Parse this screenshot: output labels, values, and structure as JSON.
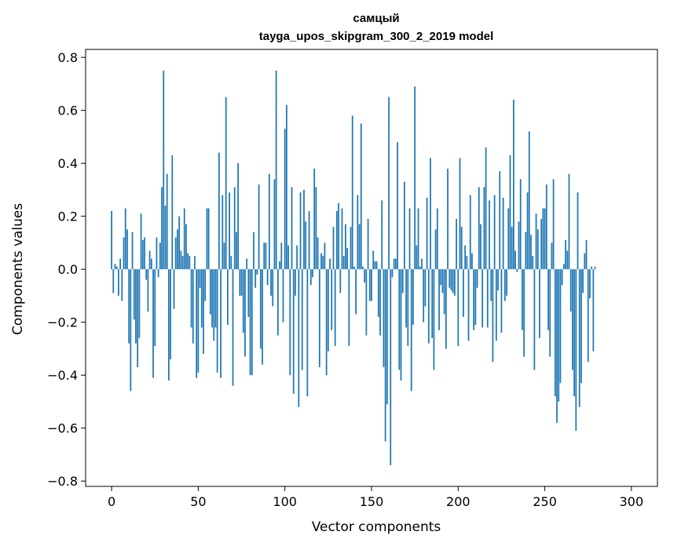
{
  "chart_data": {
    "type": "bar",
    "title": "самцый",
    "subtitle": "tayga_upos_skipgram_300_2_2019 model",
    "xlabel": "Vector components",
    "ylabel": "Components values",
    "xlim": [
      -15,
      315
    ],
    "ylim": [
      -0.82,
      0.83
    ],
    "xticks": [
      0,
      50,
      100,
      150,
      200,
      250,
      300
    ],
    "yticks": [
      -0.8,
      -0.6,
      -0.4,
      -0.2,
      0.0,
      0.2,
      0.4,
      0.6,
      0.8
    ],
    "xtick_labels": [
      "0",
      "50",
      "100",
      "150",
      "200",
      "250",
      "300"
    ],
    "ytick_labels": [
      "−0.8",
      "−0.6",
      "−0.4",
      "−0.2",
      "0.0",
      "0.2",
      "0.4",
      "0.6",
      "0.8"
    ],
    "bar_color": "#1f77b4",
    "grid": false,
    "values": [
      0.22,
      -0.09,
      0.02,
      0.01,
      -0.1,
      0.04,
      -0.12,
      0.12,
      0.23,
      0.15,
      -0.28,
      -0.46,
      0.14,
      -0.19,
      -0.28,
      -0.37,
      -0.26,
      0.21,
      0.11,
      0.12,
      -0.04,
      -0.16,
      0.07,
      0.04,
      -0.41,
      -0.29,
      0.12,
      -0.03,
      0.1,
      0.31,
      0.75,
      0.24,
      0.36,
      -0.42,
      -0.34,
      0.43,
      -0.15,
      0.12,
      0.15,
      0.2,
      0.07,
      0.05,
      0.23,
      0.17,
      0.06,
      0.05,
      -0.22,
      -0.28,
      0.05,
      -0.41,
      -0.39,
      -0.07,
      -0.22,
      -0.32,
      -0.12,
      0.23,
      0.23,
      -0.17,
      -0.22,
      -0.27,
      -0.22,
      -0.39,
      0.44,
      -0.41,
      0.28,
      0.1,
      0.65,
      -0.21,
      0.29,
      0.05,
      -0.44,
      0.31,
      0.14,
      0.4,
      -0.1,
      -0.1,
      -0.24,
      -0.33,
      0.04,
      -0.18,
      -0.4,
      -0.4,
      0.14,
      -0.07,
      -0.02,
      0.32,
      -0.3,
      -0.36,
      0.1,
      0.1,
      -0.06,
      0.36,
      -0.1,
      -0.14,
      0.34,
      0.75,
      -0.25,
      0.03,
      0.1,
      -0.2,
      0.53,
      0.62,
      0.09,
      -0.4,
      0.31,
      -0.47,
      -0.1,
      0.09,
      -0.52,
      0.29,
      -0.38,
      0.3,
      0.18,
      -0.48,
      0.22,
      -0.06,
      -0.03,
      0.38,
      0.31,
      0.12,
      -0.37,
      0.06,
      0.05,
      0.1,
      -0.4,
      -0.31,
      0.04,
      -0.23,
      0.16,
      -0.29,
      0.22,
      0.25,
      -0.09,
      0.23,
      0.05,
      0.17,
      0.08,
      -0.29,
      0.16,
      0.58,
      0.01,
      -0.17,
      0.28,
      0.17,
      0.55,
      0.01,
      -0.05,
      -0.25,
      0.19,
      -0.12,
      -0.12,
      0.07,
      0.03,
      0.03,
      -0.18,
      -0.25,
      0.26,
      -0.37,
      -0.65,
      -0.51,
      0.65,
      -0.74,
      -0.03,
      0.04,
      0.04,
      0.48,
      -0.38,
      -0.42,
      -0.09,
      0.33,
      -0.22,
      -0.29,
      0.23,
      -0.46,
      -0.21,
      0.69,
      0.09,
      0.23,
      0.01,
      0.04,
      -0.2,
      -0.14,
      0.27,
      -0.28,
      0.42,
      -0.26,
      -0.38,
      0.15,
      0.23,
      -0.23,
      -0.06,
      -0.09,
      -0.17,
      -0.3,
      0.38,
      -0.07,
      -0.08,
      -0.09,
      -0.1,
      0.19,
      -0.29,
      0.42,
      0.16,
      -0.18,
      0.09,
      0.05,
      -0.27,
      0.28,
      0.06,
      -0.23,
      -0.21,
      -0.07,
      0.31,
      0.17,
      -0.22,
      0.31,
      0.46,
      -0.22,
      0.26,
      -0.12,
      -0.35,
      0.28,
      -0.27,
      -0.08,
      0.37,
      -0.24,
      0.27,
      -0.12,
      -0.1,
      0.23,
      0.43,
      0.16,
      0.64,
      0.07,
      -0.01,
      0.18,
      0.34,
      -0.23,
      -0.33,
      0.14,
      0.29,
      0.52,
      0.13,
      0.05,
      -0.38,
      0.21,
      0.15,
      -0.26,
      0.19,
      0.23,
      0.23,
      0.32,
      -0.23,
      -0.33,
      0.1,
      0.34,
      -0.48,
      -0.58,
      -0.5,
      -0.43,
      -0.06,
      0.02,
      0.11,
      0.07,
      0.36,
      -0.16,
      -0.38,
      -0.48,
      -0.61,
      0.29,
      -0.52,
      -0.43,
      -0.09,
      0.06,
      0.11,
      -0.35,
      -0.11,
      0.01,
      -0.31,
      0.01
    ]
  }
}
